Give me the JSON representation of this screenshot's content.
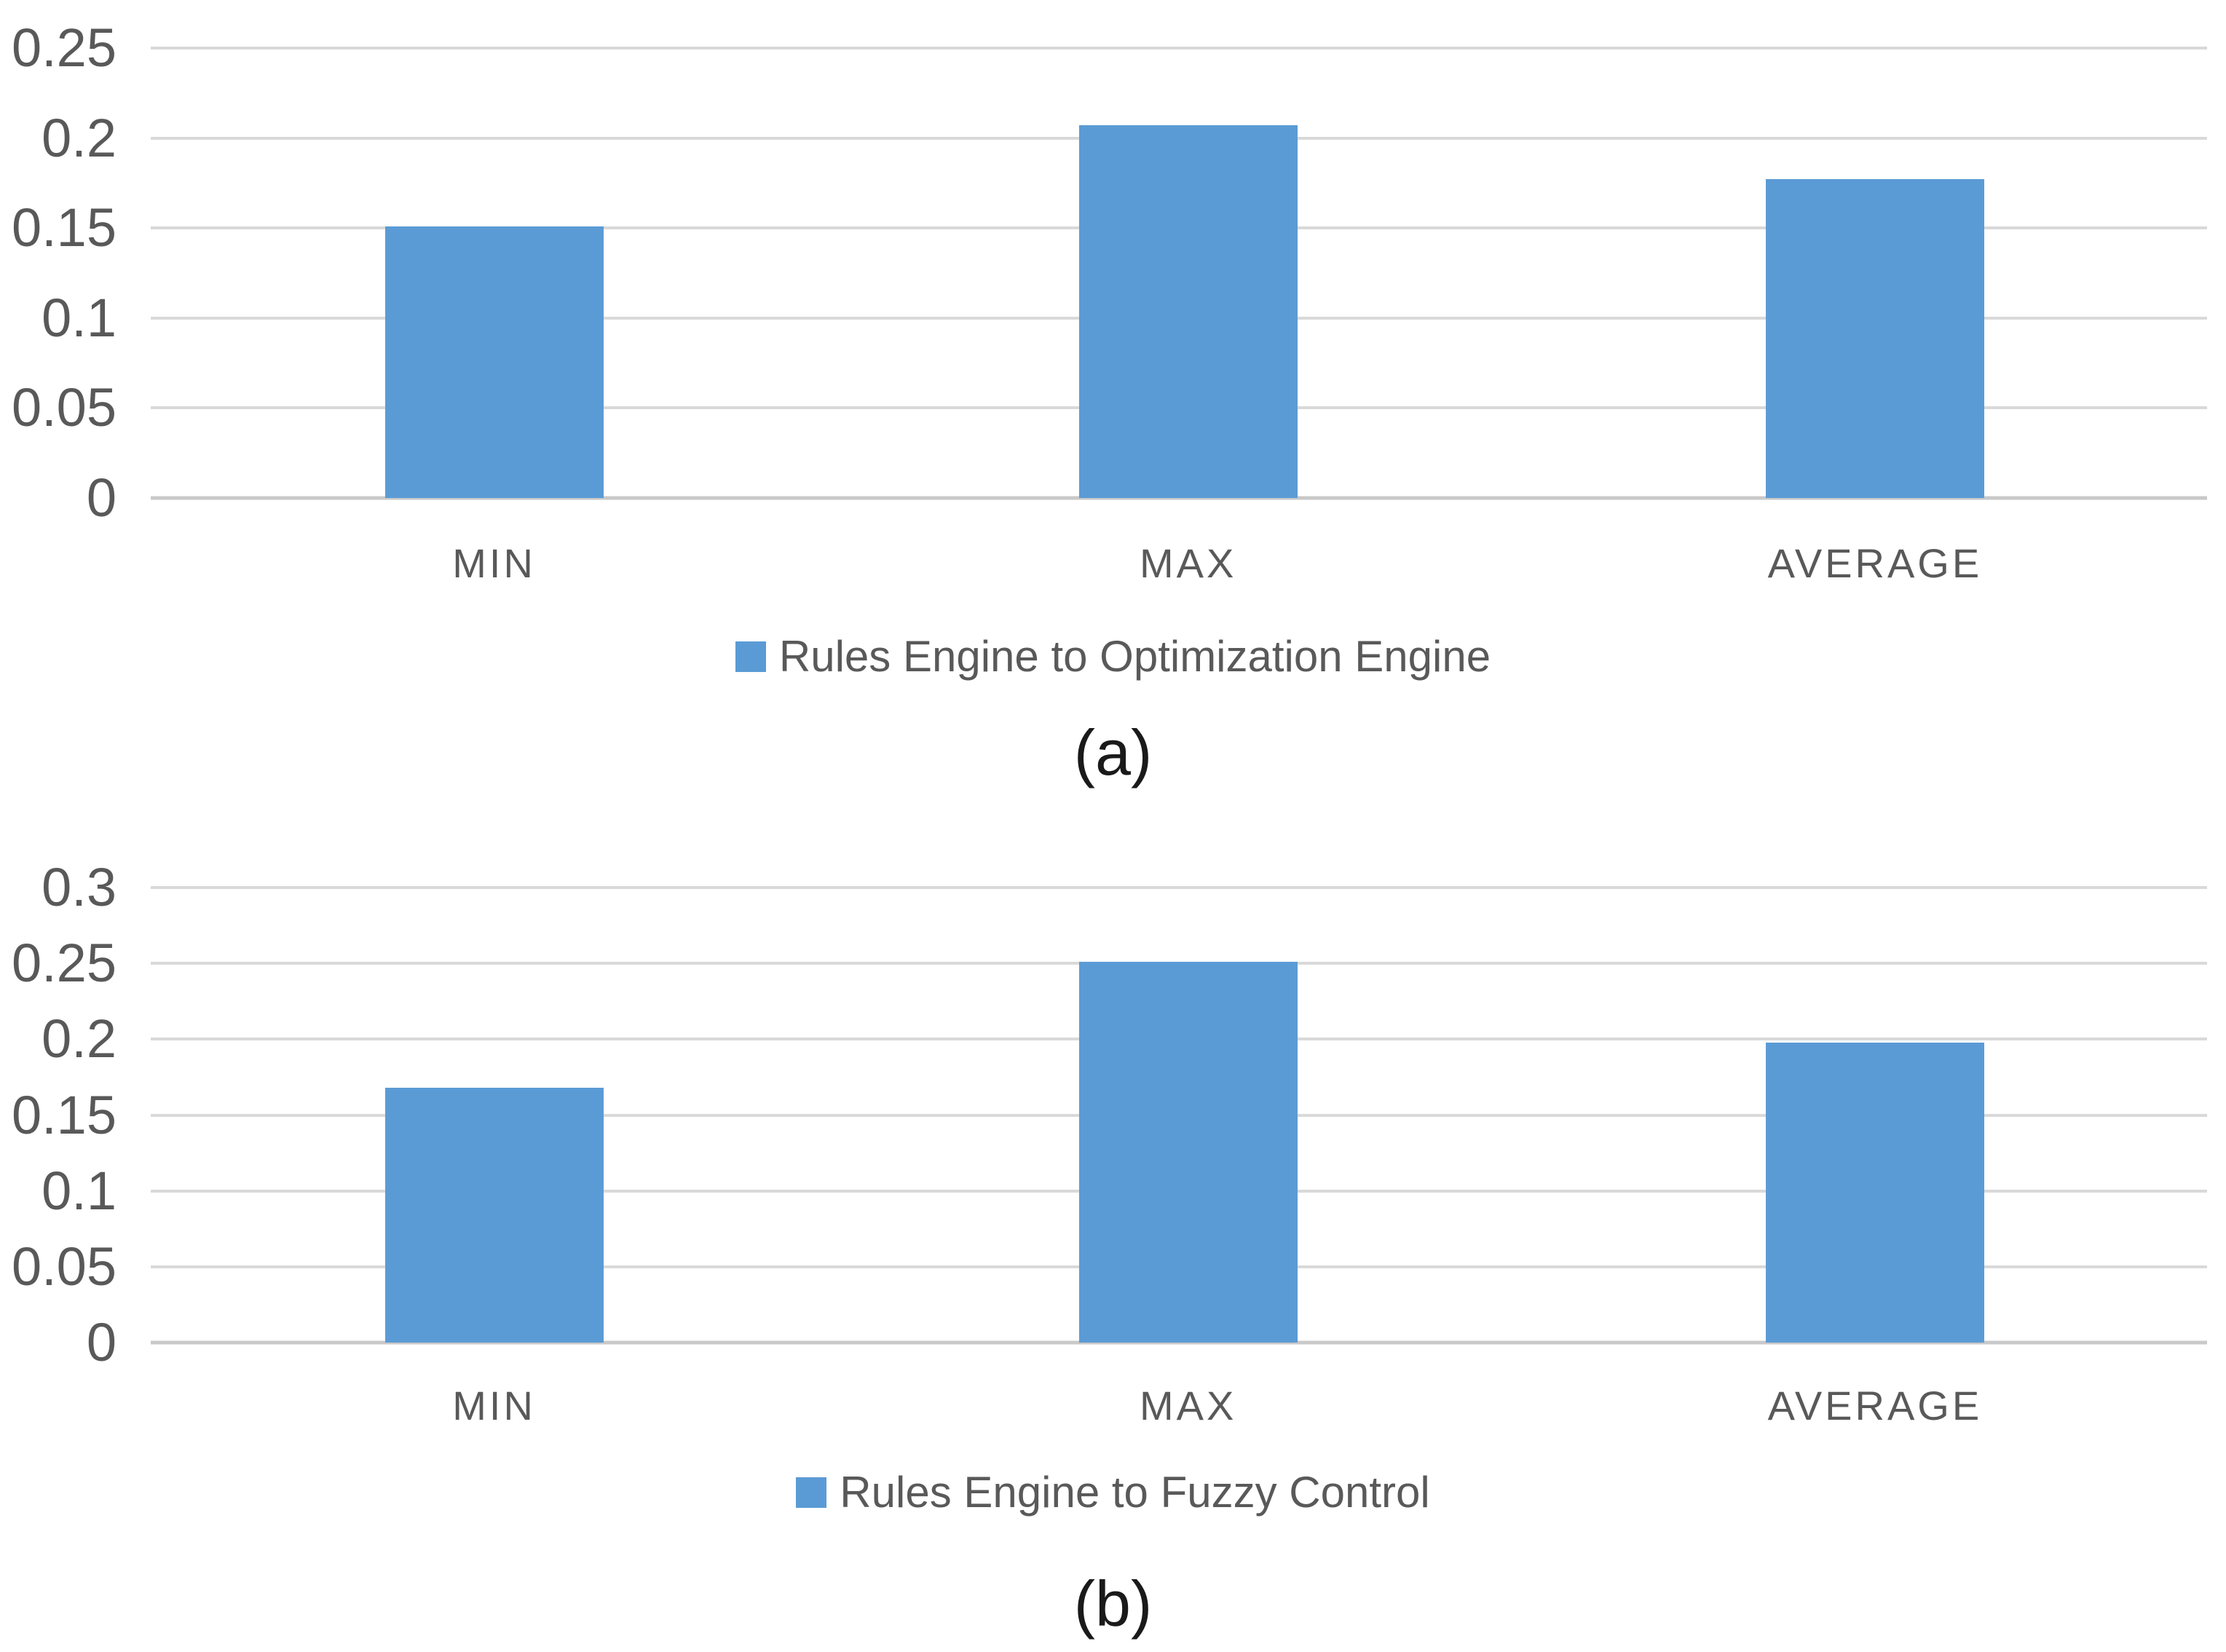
{
  "figure": {
    "background": "#ffffff",
    "panels": [
      "(a)",
      "(b)"
    ]
  },
  "chart_data": [
    {
      "id": "a",
      "type": "bar",
      "title": "",
      "xlabel": "",
      "ylabel": "",
      "categories": [
        "MIN",
        "MAX",
        "AVERAGE"
      ],
      "values": [
        0.151,
        0.207,
        0.177
      ],
      "series": [
        {
          "name": "Rules Engine to Optimization Engine",
          "values": [
            0.151,
            0.207,
            0.177
          ]
        }
      ],
      "legend_label": "Rules Engine to Optimization Engine",
      "legend_position": "bottom",
      "caption": "(a)",
      "ylim": [
        0,
        0.25
      ],
      "yticks": [
        0,
        0.05,
        0.1,
        0.15,
        0.2,
        0.25
      ],
      "ytick_labels": [
        "0",
        "0.05",
        "0.1",
        "0.15",
        "0.2",
        "0.25"
      ],
      "grid": true,
      "bar_color": "#5B9BD5",
      "gridline_color": "#d9d9d9",
      "zero_line_color": "#c9c9c9",
      "text_color": "#595959",
      "caption_color": "#1a1a1a"
    },
    {
      "id": "b",
      "type": "bar",
      "title": "",
      "xlabel": "",
      "ylabel": "",
      "categories": [
        "MIN",
        "MAX",
        "AVERAGE"
      ],
      "values": [
        0.168,
        0.251,
        0.198
      ],
      "series": [
        {
          "name": "Rules Engine to Fuzzy Control",
          "values": [
            0.168,
            0.251,
            0.198
          ]
        }
      ],
      "legend_label": "Rules Engine to Fuzzy Control",
      "legend_position": "bottom",
      "caption": "(b)",
      "ylim": [
        0,
        0.3
      ],
      "yticks": [
        0,
        0.05,
        0.1,
        0.15,
        0.2,
        0.25,
        0.3
      ],
      "ytick_labels": [
        "0",
        "0.05",
        "0.1",
        "0.15",
        "0.2",
        "0.25",
        "0.3"
      ],
      "grid": true,
      "bar_color": "#5B9BD5",
      "gridline_color": "#d9d9d9",
      "zero_line_color": "#c9c9c9",
      "text_color": "#595959",
      "caption_color": "#1a1a1a"
    }
  ]
}
